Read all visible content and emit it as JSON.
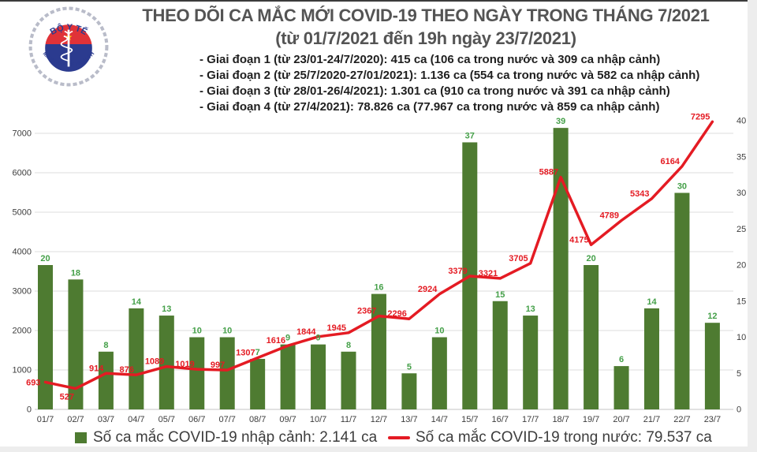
{
  "logo": {
    "top_text": "BỘ Y TẾ",
    "bottom_text": "MINISTRY OF HEALTH",
    "colors": {
      "red": "#e03238",
      "navy": "#2b3b8f",
      "star_yellow": "#ffcf01",
      "ring_gray": "#b9bcc9"
    }
  },
  "header": {
    "title_line1": "THEO DÕI CA MẮC MỚI COVID-19 THEO NGÀY TRONG THÁNG 7/2021",
    "title_line2": "(từ 01/7/2021 đến 19h ngày 23/7/2021)",
    "bullets": [
      "- Giai đoạn 1 (từ 23/01-24/7/2020): 415 ca (106 ca trong nước và 309 ca nhập cảnh)",
      "- Giai đoạn 2 (từ 25/7/2020-27/01/2021): 1.136 ca (554 ca trong nước và 582 ca nhập cảnh)",
      "- Giai đoạn 3 (từ 28/01-26/4/2021): 1.301 ca (910 ca trong nước và 391 ca nhập cảnh)",
      "- Giai đoạn 4 (từ 27/4/2021): 78.826 ca (77.967 ca trong nước và 859 ca nhập cảnh)"
    ]
  },
  "chart_data": {
    "type": "bar+line combo",
    "categories": [
      "01/7",
      "02/7",
      "03/7",
      "04/7",
      "05/7",
      "06/7",
      "07/7",
      "08/7",
      "09/7",
      "10/7",
      "11/7",
      "12/7",
      "13/7",
      "14/7",
      "15/7",
      "16/7",
      "17/7",
      "18/7",
      "19/7",
      "20/7",
      "21/7",
      "22/7",
      "23/7"
    ],
    "series": [
      {
        "name": "Số ca mắc COVID-19 nhập cảnh: 2.141 ca",
        "type": "bar",
        "axis": "right",
        "color": "#4e7b31",
        "label_color": "#45a049",
        "values": [
          20,
          18,
          8,
          14,
          13,
          10,
          10,
          7,
          9,
          9,
          8,
          16,
          5,
          10,
          37,
          15,
          13,
          39,
          20,
          6,
          14,
          30,
          12
        ]
      },
      {
        "name": "Số ca mắc COVID-19 trong nước: 79.537 ca",
        "type": "line",
        "axis": "left",
        "color": "#e41b23",
        "label_color": "#e41b23",
        "values": [
          693,
          527,
          914,
          876,
          1089,
          1019,
          997,
          1307,
          1616,
          1844,
          1945,
          2367,
          2296,
          2924,
          3379,
          3321,
          3705,
          5887,
          4175,
          4789,
          5343,
          6164,
          7295
        ]
      }
    ],
    "left_axis": {
      "min": 0,
      "max": 7000,
      "ticks": [
        0,
        1000,
        2000,
        3000,
        4000,
        5000,
        6000,
        7000
      ]
    },
    "right_axis": {
      "min": 0,
      "max": 40,
      "ticks": [
        0,
        5,
        10,
        15,
        20,
        25,
        30,
        35,
        40
      ]
    },
    "grid": true,
    "legend_position": "bottom",
    "axis_label_color": "#3d3d3d",
    "grid_color": "#dcdcdc"
  }
}
